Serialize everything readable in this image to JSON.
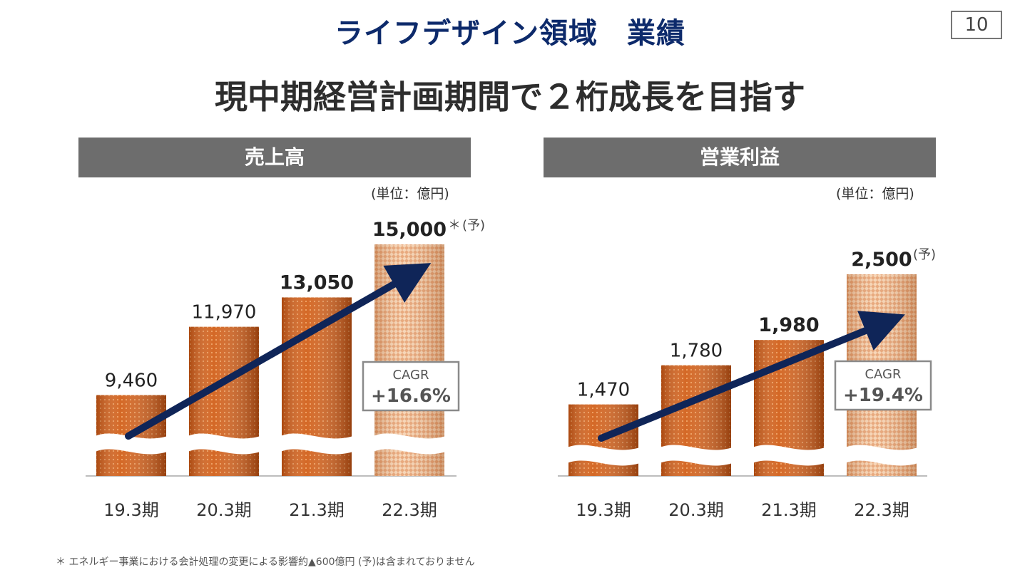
{
  "header": {
    "title": "ライフデザイン領域　業績",
    "page_number": "10"
  },
  "subtitle": "現中期経営計画期間で２桁成長を目指す",
  "footnote": "＊ エネルギー事業における会計処理の変更による影響約▲600億円 (予)は含まれておりません",
  "colors": {
    "bar_actual": "#d2601a",
    "bar_forecast": "#e8a878",
    "arrow": "#0f2558",
    "header_bg": "#6d6d6d"
  },
  "chart_data": [
    {
      "type": "bar",
      "title": "売上高",
      "unit_label": "(単位：億円)",
      "categories": [
        "19.3期",
        "20.3期",
        "21.3期",
        "22.3期"
      ],
      "values": [
        9460,
        11970,
        13050,
        15000
      ],
      "value_labels": [
        "9,460",
        "11,970",
        "13,050",
        "15,000"
      ],
      "bold_labels": [
        false,
        false,
        true,
        true
      ],
      "forecast": [
        false,
        false,
        false,
        true
      ],
      "annotations": [
        "＊",
        "(予)"
      ],
      "axis_break": true,
      "cagr_label": "CAGR",
      "cagr_value": "+16.6%"
    },
    {
      "type": "bar",
      "title": "営業利益",
      "unit_label": "(単位：億円)",
      "categories": [
        "19.3期",
        "20.3期",
        "21.3期",
        "22.3期"
      ],
      "values": [
        1470,
        1780,
        1980,
        2500
      ],
      "value_labels": [
        "1,470",
        "1,780",
        "1,980",
        "2,500"
      ],
      "bold_labels": [
        false,
        false,
        true,
        true
      ],
      "forecast": [
        false,
        false,
        false,
        true
      ],
      "annotations": [
        "(予)"
      ],
      "axis_break": true,
      "cagr_label": "CAGR",
      "cagr_value": "+19.4%"
    }
  ]
}
